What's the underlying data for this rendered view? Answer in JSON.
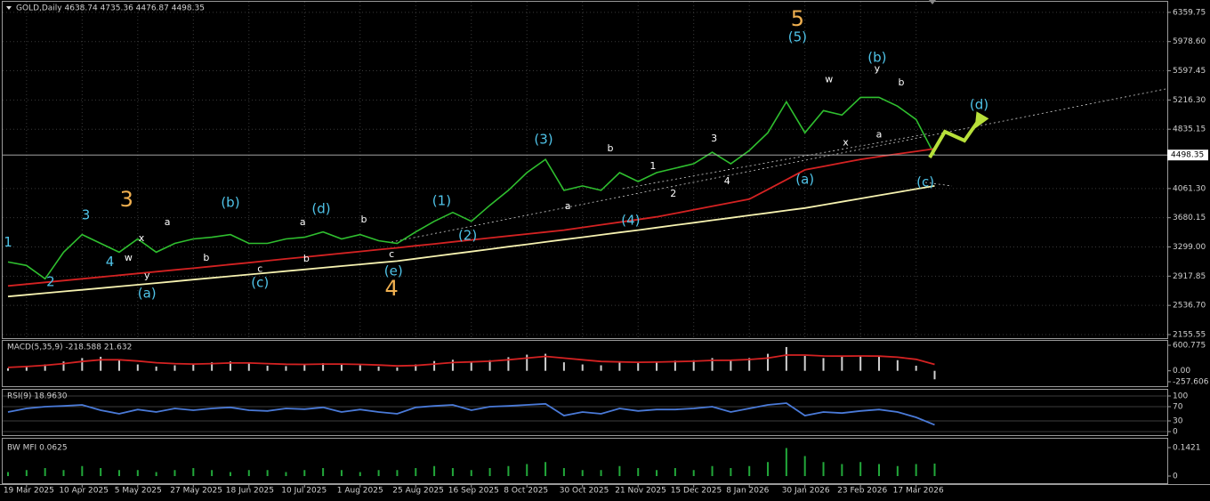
{
  "chart_data": [
    {
      "type": "line",
      "title": "GOLD,Daily  4638.74 4735.36 4476.87 4498.35",
      "categories": [
        null,
        "19 Mar 2025",
        null,
        null,
        "10 Apr 2025",
        null,
        null,
        "5 May 2025",
        null,
        null,
        "27 May 2025",
        null,
        null,
        "18 Jun 2025",
        null,
        null,
        "10 Jul 2025",
        null,
        null,
        "1 Aug 2025",
        null,
        null,
        "25 Aug 2025",
        null,
        null,
        "16 Sep 2025",
        null,
        null,
        "8 Oct 2025",
        null,
        null,
        "30 Oct 2025",
        null,
        null,
        "21 Nov 2025",
        null,
        null,
        "15 Dec 2025",
        null,
        null,
        "8 Jan 2026",
        null,
        null,
        "30 Jan 2026",
        null,
        null,
        "23 Feb 2026",
        null,
        null,
        "17 Mar 2026",
        null
      ],
      "series": [
        {
          "color": "#2fbf2f",
          "values": [
            3103,
            3057,
            2884,
            3230,
            3460,
            3345,
            3230,
            3403,
            3230,
            3345,
            3403,
            3426,
            3460,
            3345,
            3345,
            3403,
            3426,
            3495,
            3403,
            3460,
            3380,
            3345,
            3495,
            3634,
            3749,
            3634,
            3842,
            4038,
            4269,
            4442,
            4038,
            4096,
            4038,
            4269,
            4153,
            4269,
            4327,
            4385,
            4535,
            4385,
            4558,
            4789,
            5193,
            4789,
            5078,
            5020,
            5251,
            5251,
            5136,
            4962,
            4498.35
          ]
        },
        {
          "color": "#d42222",
          "values": [
            2791,
            2814,
            2837,
            2860,
            2883,
            2907,
            2930,
            2953,
            2976,
            2999,
            3022,
            3046,
            3070,
            3094,
            3119,
            3143,
            3167,
            3191,
            3215,
            3240,
            3264,
            3288,
            3314,
            3339,
            3365,
            3391,
            3416,
            3442,
            3468,
            3493,
            3519,
            3553,
            3588,
            3622,
            3657,
            3691,
            3737,
            3783,
            3830,
            3876,
            3922,
            4049,
            4177,
            4304,
            4350,
            4396,
            4442,
            4477,
            4512,
            4546,
            4581
          ]
        },
        {
          "color": "#f6f2b0",
          "values": [
            2652,
            2674,
            2696,
            2718,
            2740,
            2762,
            2784,
            2806,
            2828,
            2850,
            2873,
            2895,
            2917,
            2939,
            2961,
            2983,
            3005,
            3027,
            3049,
            3071,
            3093,
            3115,
            3146,
            3177,
            3208,
            3239,
            3270,
            3302,
            3333,
            3364,
            3395,
            3426,
            3457,
            3488,
            3519,
            3551,
            3583,
            3615,
            3647,
            3679,
            3711,
            3743,
            3775,
            3807,
            3848,
            3889,
            3931,
            3972,
            4013,
            4055,
            4096
          ]
        }
      ],
      "ylim": [
        2109,
        6521
      ],
      "yticks": [
        6359.75,
        {
          "value": 5978.6,
          "label": "5978.60"
        },
        5597.45,
        {
          "value": 5216.3,
          "label": "5216.30"
        },
        4835.15,
        {
          "value": 4061.3,
          "label": "4061.30"
        },
        3680.15,
        {
          "value": 3299,
          "label": "3299.00"
        },
        2917.85,
        {
          "value": 2536.7,
          "label": "2536.70"
        },
        2155.55
      ],
      "last_price": 4498.35,
      "grid": true,
      "annotations": [
        {
          "text": "5",
          "x": 42.6,
          "y": 6266,
          "color": "#f0b050"
        },
        {
          "text": "(5)",
          "x": 42.6,
          "y": 6033,
          "color": "#4fc3e8"
        },
        {
          "text": "3",
          "x": 6.4,
          "y": 3909,
          "color": "#f0b050"
        },
        {
          "text": "4",
          "x": 20.7,
          "y": 2748,
          "color": "#f0b050"
        },
        {
          "text": "(a)",
          "x": 7.5,
          "y": 2690,
          "color": "#4fc3e8"
        },
        {
          "text": "(b)",
          "x": 12,
          "y": 3874,
          "color": "#4fc3e8"
        },
        {
          "text": "(c)",
          "x": 13.6,
          "y": 2829,
          "color": "#4fc3e8"
        },
        {
          "text": "(d)",
          "x": 16.9,
          "y": 3793,
          "color": "#4fc3e8"
        },
        {
          "text": "(e)",
          "x": 20.8,
          "y": 2980,
          "color": "#4fc3e8"
        },
        {
          "text": "(1)",
          "x": 23.4,
          "y": 3897,
          "color": "#4fc3e8"
        },
        {
          "text": "(2)",
          "x": 24.8,
          "y": 3444,
          "color": "#4fc3e8"
        },
        {
          "text": "(3)",
          "x": 28.9,
          "y": 4698,
          "color": "#4fc3e8"
        },
        {
          "text": "(4)",
          "x": 33.6,
          "y": 3642,
          "color": "#4fc3e8"
        },
        {
          "text": "(a)",
          "x": 43,
          "y": 4176,
          "color": "#4fc3e8"
        },
        {
          "text": "(b)",
          "x": 46.9,
          "y": 5766,
          "color": "#4fc3e8"
        },
        {
          "text": "(c)",
          "x": 49.5,
          "y": 4141,
          "color": "#4fc3e8"
        },
        {
          "text": "(d)",
          "x": 52.4,
          "y": 5151,
          "color": "#4fc3e8"
        },
        {
          "text": "1",
          "x": 0,
          "y": 3358,
          "color": "#4fc3e8"
        },
        {
          "text": "2",
          "x": 2.3,
          "y": 2840,
          "color": "#4fc3e8"
        },
        {
          "text": "3",
          "x": 4.2,
          "y": 3711,
          "color": "#4fc3e8"
        },
        {
          "text": "4",
          "x": 5.5,
          "y": 3100,
          "color": "#4fc3e8"
        },
        {
          "text": "w",
          "x": 6.5,
          "y": 3154,
          "color": "#ffffff"
        },
        {
          "text": "x",
          "x": 7.2,
          "y": 3410,
          "color": "#ffffff"
        },
        {
          "text": "y",
          "x": 7.5,
          "y": 2920,
          "color": "#ffffff"
        },
        {
          "text": "a",
          "x": 8.6,
          "y": 3618,
          "color": "#ffffff"
        },
        {
          "text": "b",
          "x": 10.7,
          "y": 3154,
          "color": "#ffffff"
        },
        {
          "text": "c",
          "x": 13.6,
          "y": 3010,
          "color": "#ffffff"
        },
        {
          "text": "a",
          "x": 15.9,
          "y": 3618,
          "color": "#ffffff"
        },
        {
          "text": "b",
          "x": 16.1,
          "y": 3142,
          "color": "#ffffff"
        },
        {
          "text": "b",
          "x": 19.2,
          "y": 3653,
          "color": "#ffffff"
        },
        {
          "text": "c",
          "x": 20.7,
          "y": 3200,
          "color": "#ffffff"
        },
        {
          "text": "b",
          "x": 32.5,
          "y": 4582,
          "color": "#ffffff"
        },
        {
          "text": "a",
          "x": 30.2,
          "y": 3829,
          "color": "#ffffff"
        },
        {
          "text": "1",
          "x": 34.8,
          "y": 4350,
          "color": "#ffffff"
        },
        {
          "text": "2",
          "x": 35.9,
          "y": 3990,
          "color": "#ffffff"
        },
        {
          "text": "3",
          "x": 38.1,
          "y": 4710,
          "color": "#ffffff"
        },
        {
          "text": "4",
          "x": 38.8,
          "y": 4150,
          "color": "#ffffff"
        },
        {
          "text": "w",
          "x": 44.3,
          "y": 5480,
          "color": "#ffffff"
        },
        {
          "text": "x",
          "x": 45.2,
          "y": 4660,
          "color": "#ffffff"
        },
        {
          "text": "y",
          "x": 46.9,
          "y": 5620,
          "color": "#ffffff"
        },
        {
          "text": "a",
          "x": 47,
          "y": 4760,
          "color": "#ffffff"
        },
        {
          "text": "b",
          "x": 48.2,
          "y": 5440,
          "color": "#ffffff"
        }
      ]
    },
    {
      "type": "bar",
      "title": "MACD(5,35,9) -218.588 21.632",
      "values": [
        60,
        120,
        150,
        220,
        300,
        330,
        250,
        150,
        100,
        130,
        150,
        200,
        220,
        180,
        120,
        110,
        140,
        180,
        150,
        130,
        100,
        80,
        150,
        230,
        260,
        220,
        250,
        320,
        380,
        400,
        200,
        150,
        130,
        200,
        180,
        220,
        240,
        250,
        300,
        250,
        300,
        400,
        560,
        350,
        300,
        330,
        360,
        330,
        250,
        120,
        -200
      ],
      "color": "#cfcfcf",
      "series": [
        {
          "color": "#d42222",
          "values": [
            80,
            100,
            130,
            170,
            220,
            260,
            260,
            230,
            190,
            170,
            160,
            170,
            185,
            185,
            170,
            155,
            150,
            160,
            160,
            150,
            135,
            115,
            125,
            160,
            195,
            210,
            225,
            260,
            300,
            340,
            300,
            260,
            220,
            210,
            200,
            205,
            215,
            225,
            245,
            250,
            265,
            300,
            370,
            370,
            350,
            345,
            350,
            345,
            320,
            270,
            150
          ]
        }
      ],
      "ylim": [
        -257.606,
        600.775
      ],
      "yticks": [
        600.775,
        {
          "value": 0,
          "label": "0.00"
        },
        -257.606
      ]
    },
    {
      "type": "line",
      "title": "RSI(9) 18.9630",
      "series": [
        {
          "color": "#4a7ad8",
          "values": [
            55,
            65,
            70,
            72,
            75,
            60,
            50,
            62,
            55,
            65,
            60,
            65,
            68,
            60,
            58,
            65,
            63,
            68,
            55,
            62,
            55,
            50,
            68,
            72,
            75,
            60,
            70,
            72,
            75,
            78,
            45,
            55,
            50,
            65,
            58,
            62,
            62,
            65,
            70,
            55,
            65,
            75,
            80,
            45,
            55,
            52,
            58,
            62,
            55,
            40,
            19
          ]
        }
      ],
      "ylim": [
        0,
        100
      ],
      "yticks": [
        100,
        70,
        30,
        0
      ]
    },
    {
      "type": "bar",
      "title": "BW MFI 0.0625",
      "values": [
        0.02,
        0.03,
        0.04,
        0.03,
        0.05,
        0.04,
        0.03,
        0.03,
        0.02,
        0.03,
        0.04,
        0.03,
        0.02,
        0.03,
        0.03,
        0.02,
        0.03,
        0.04,
        0.03,
        0.02,
        0.03,
        0.03,
        0.04,
        0.05,
        0.04,
        0.03,
        0.04,
        0.05,
        0.06,
        0.07,
        0.04,
        0.03,
        0.03,
        0.05,
        0.04,
        0.03,
        0.04,
        0.03,
        0.05,
        0.04,
        0.05,
        0.07,
        0.14,
        0.1,
        0.07,
        0.06,
        0.07,
        0.06,
        0.05,
        0.06,
        0.0625
      ],
      "color": "#22a83a",
      "ylim": [
        0,
        0.1421
      ],
      "yticks": [
        0.1421,
        0
      ]
    }
  ]
}
